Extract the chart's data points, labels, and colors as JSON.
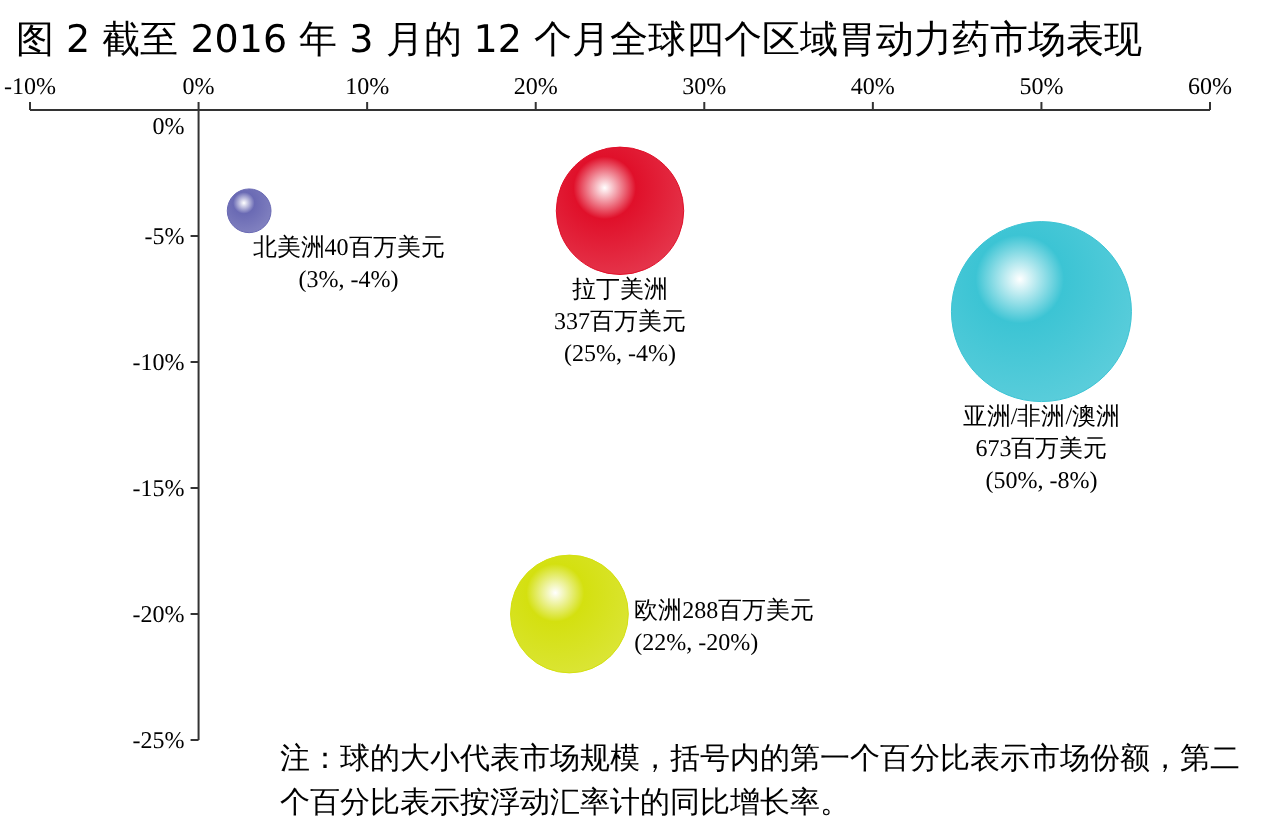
{
  "chart_data": {
    "type": "bubble",
    "title": "图 2 截至 2016 年 3 月的 12 个月全球四个区域胃动力药市场表现",
    "x": [
      3,
      25,
      50,
      22
    ],
    "values": [
      -4,
      -4,
      -8,
      -20
    ],
    "sizes": [
      0.059,
      0.501,
      1,
      0.428
    ],
    "colors": [
      "#6a6ab4",
      "#e0102a",
      "#3cc4d4",
      "#d4e010"
    ],
    "xlim": [
      -10,
      60
    ],
    "ylim": [
      -25,
      0
    ],
    "xticks": [
      {
        "value": -10,
        "label": "-10%"
      },
      {
        "value": 0,
        "label": "0%"
      },
      {
        "value": 10,
        "label": "10%"
      },
      {
        "value": 20,
        "label": "20%"
      },
      {
        "value": 30,
        "label": "30%"
      },
      {
        "value": 40,
        "label": "40%"
      },
      {
        "value": 50,
        "label": "50%"
      },
      {
        "value": 60,
        "label": "60%"
      }
    ],
    "yticks": [
      {
        "value": 0,
        "label": "0%"
      },
      {
        "value": -5,
        "label": "-5%"
      },
      {
        "value": -10,
        "label": "-10%"
      },
      {
        "value": -15,
        "label": "-15%"
      },
      {
        "value": -20,
        "label": "-20%"
      },
      {
        "value": -25,
        "label": "-25%"
      }
    ],
    "annotations": [
      "北美洲40百万美元\n(3%, -4%)",
      "拉丁美洲\n337百万美元\n(25%, -4%)",
      "亚洲/非洲/澳洲\n673百万美元\n(50%, -8%)",
      "欧洲288百万美元\n(22%, -20%)",
      "注：球的大小代表市场规模，括号内的第一个百分比表示市场份额，第二个百分比表示按浮动汇率计的同比增长率。"
    ]
  }
}
